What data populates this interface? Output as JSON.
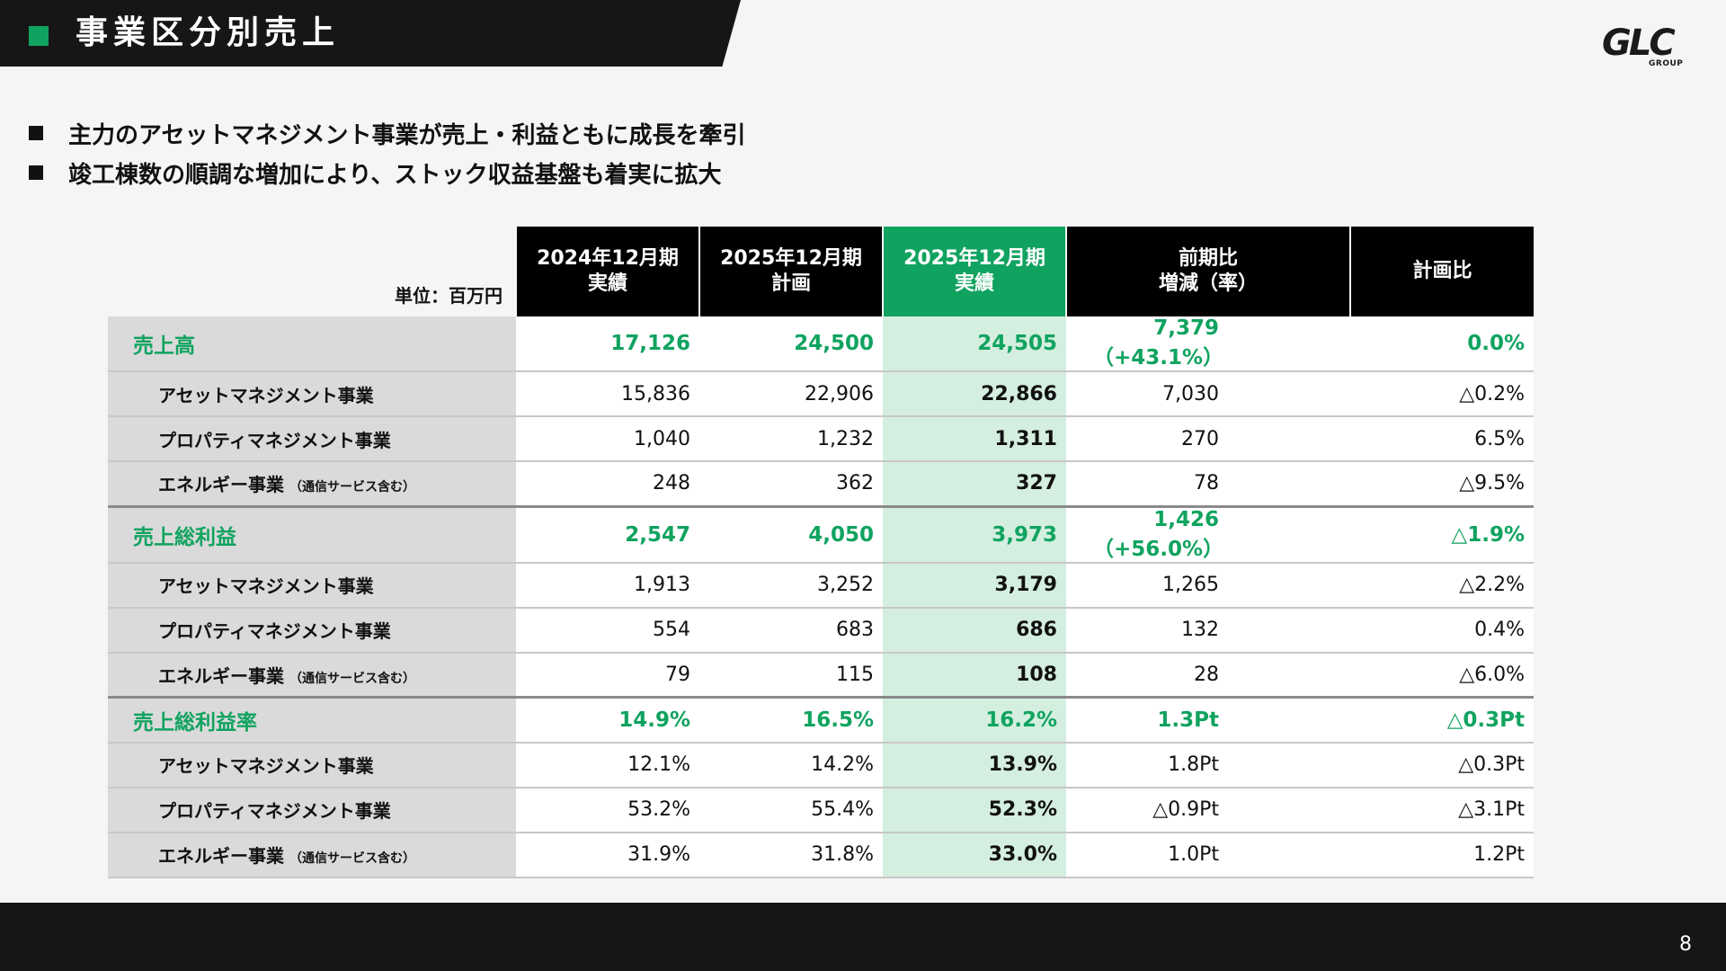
{
  "title": "事業区分別売上",
  "logo": {
    "main": "GLC",
    "sub": "GROUP"
  },
  "bullets": [
    "主力のアセットマネジメント事業が売上・利益ともに成長を牽引",
    "竣工棟数の順調な増加により、ストック収益基盤も着実に拡大"
  ],
  "table": {
    "unit": "単位：百万円",
    "headers": [
      {
        "l1": "2024年12月期",
        "l2": "実績"
      },
      {
        "l1": "2025年12月期",
        "l2": "計画"
      },
      {
        "l1": "2025年12月期",
        "l2": "実績"
      },
      {
        "l1": "前期比",
        "l2": "増減（率）"
      },
      {
        "l1": "計画比",
        "l2": ""
      }
    ],
    "rows": [
      {
        "label": "売上高",
        "small": "",
        "v1": "17,126",
        "v2": "24,500",
        "v3": "24,505",
        "d": "7,379",
        "r": "（+43.1%）",
        "p": "0.0%"
      },
      {
        "label": "アセットマネジメント事業",
        "small": "",
        "v1": "15,836",
        "v2": "22,906",
        "v3": "22,866",
        "d": "7,030",
        "r": "",
        "p": "△0.2%"
      },
      {
        "label": "プロパティマネジメント事業",
        "small": "",
        "v1": "1,040",
        "v2": "1,232",
        "v3": "1,311",
        "d": "270",
        "r": "",
        "p": "6.5%"
      },
      {
        "label": "エネルギー事業",
        "small": "（通信サービス含む）",
        "v1": "248",
        "v2": "362",
        "v3": "327",
        "d": "78",
        "r": "",
        "p": "△9.5%"
      },
      {
        "label": "売上総利益",
        "small": "",
        "v1": "2,547",
        "v2": "4,050",
        "v3": "3,973",
        "d": "1,426",
        "r": "（+56.0%）",
        "p": "△1.9%"
      },
      {
        "label": "アセットマネジメント事業",
        "small": "",
        "v1": "1,913",
        "v2": "3,252",
        "v3": "3,179",
        "d": "1,265",
        "r": "",
        "p": "△2.2%"
      },
      {
        "label": "プロパティマネジメント事業",
        "small": "",
        "v1": "554",
        "v2": "683",
        "v3": "686",
        "d": "132",
        "r": "",
        "p": "0.4%"
      },
      {
        "label": "エネルギー事業",
        "small": "（通信サービス含む）",
        "v1": "79",
        "v2": "115",
        "v3": "108",
        "d": "28",
        "r": "",
        "p": "△6.0%"
      },
      {
        "label": "売上総利益率",
        "small": "",
        "v1": "14.9%",
        "v2": "16.5%",
        "v3": "16.2%",
        "d": "1.3Pt",
        "r": "",
        "p": "△0.3Pt"
      },
      {
        "label": "アセットマネジメント事業",
        "small": "",
        "v1": "12.1%",
        "v2": "14.2%",
        "v3": "13.9%",
        "d": "1.8Pt",
        "r": "",
        "p": "△0.3Pt"
      },
      {
        "label": "プロパティマネジメント事業",
        "small": "",
        "v1": "53.2%",
        "v2": "55.4%",
        "v3": "52.3%",
        "d": "△0.9Pt",
        "r": "",
        "p": "△3.1Pt"
      },
      {
        "label": "エネルギー事業",
        "small": "（通信サービス含む）",
        "v1": "31.9%",
        "v2": "31.8%",
        "v3": "33.0%",
        "d": "1.0Pt",
        "r": "",
        "p": "1.2Pt"
      }
    ]
  },
  "page_number": "8",
  "colors": {
    "accent": "#10a35f",
    "highlight": "#d4eedf",
    "dark": "#161616"
  }
}
